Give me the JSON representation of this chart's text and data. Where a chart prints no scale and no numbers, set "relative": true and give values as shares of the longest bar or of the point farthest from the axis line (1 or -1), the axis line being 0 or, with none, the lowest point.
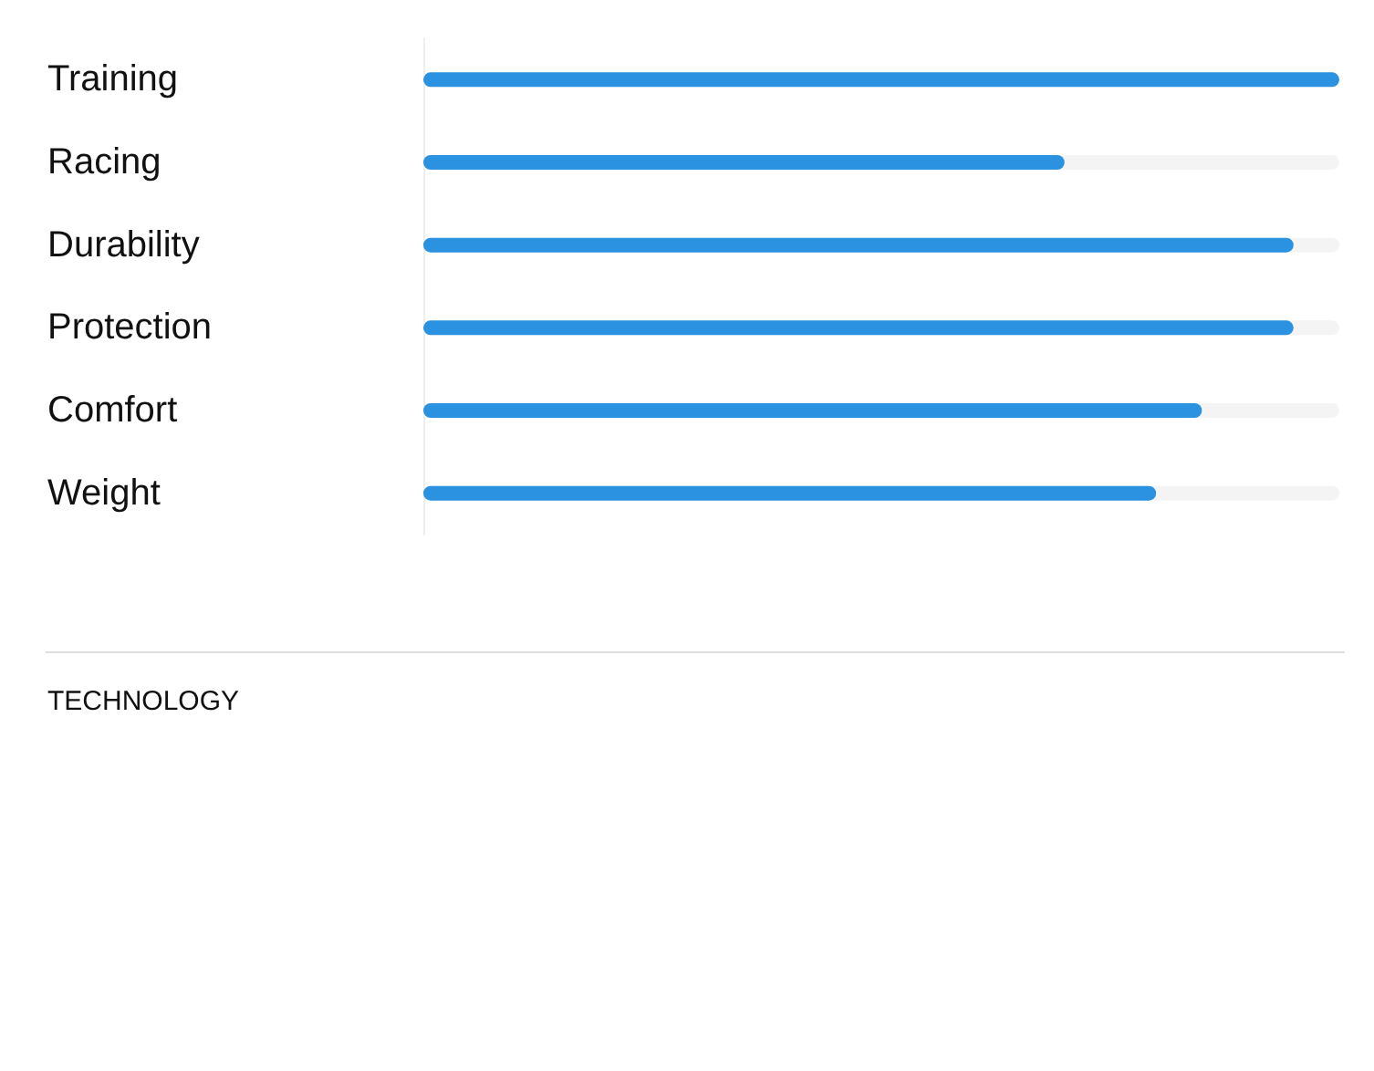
{
  "chart_data": {
    "type": "bar",
    "orientation": "horizontal",
    "relative": true,
    "categories": [
      "Training",
      "Racing",
      "Durability",
      "Protection",
      "Comfort",
      "Weight"
    ],
    "values": [
      1,
      0.7,
      0.95,
      0.95,
      0.85,
      0.8
    ],
    "color": "#2a92e0",
    "annotations": [
      "TECHNOLOGY"
    ]
  }
}
